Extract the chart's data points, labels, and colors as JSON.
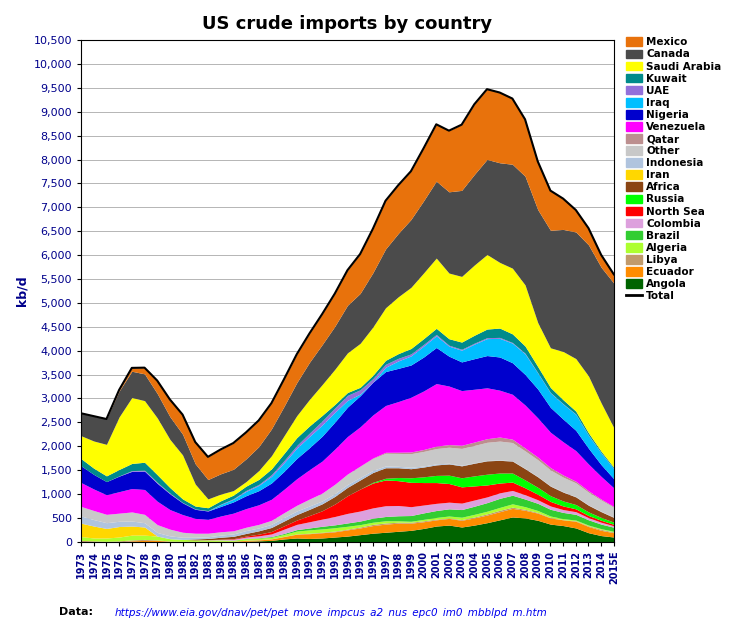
{
  "title": "US crude imports by country",
  "ylabel": "kb/d",
  "years": [
    1973,
    1974,
    1975,
    1976,
    1977,
    1978,
    1979,
    1980,
    1981,
    1982,
    1983,
    1984,
    1985,
    1986,
    1987,
    1988,
    1989,
    1990,
    1991,
    1992,
    1993,
    1994,
    1995,
    1996,
    1997,
    1998,
    1999,
    2000,
    2001,
    2002,
    2003,
    2004,
    2005,
    2006,
    2007,
    2008,
    2009,
    2010,
    2011,
    2012,
    2013,
    2014,
    "2015E"
  ],
  "ylim": [
    0,
    10500
  ],
  "yticks": [
    0,
    500,
    1000,
    1500,
    2000,
    2500,
    3000,
    3500,
    4000,
    4500,
    5000,
    5500,
    6000,
    6500,
    7000,
    7500,
    8000,
    8500,
    9000,
    9500,
    10000,
    10500
  ],
  "series": {
    "Angola": {
      "color": "#006400",
      "data": [
        0,
        0,
        0,
        0,
        0,
        0,
        0,
        0,
        0,
        0,
        0,
        0,
        0,
        10,
        20,
        30,
        60,
        80,
        70,
        80,
        100,
        120,
        150,
        180,
        200,
        220,
        240,
        280,
        330,
        350,
        310,
        350,
        400,
        460,
        520,
        500,
        450,
        370,
        340,
        290,
        190,
        130,
        100
      ]
    },
    "Ecuador": {
      "color": "#FF8C00",
      "data": [
        0,
        0,
        0,
        0,
        20,
        30,
        30,
        10,
        10,
        10,
        10,
        10,
        10,
        20,
        20,
        30,
        50,
        80,
        100,
        110,
        110,
        130,
        140,
        160,
        170,
        170,
        150,
        140,
        130,
        140,
        140,
        150,
        160,
        170,
        180,
        160,
        150,
        130,
        120,
        140,
        130,
        110,
        90
      ]
    },
    "Libya": {
      "color": "#C19A6B",
      "data": [
        30,
        20,
        10,
        20,
        20,
        20,
        10,
        5,
        0,
        0,
        0,
        0,
        0,
        5,
        5,
        5,
        5,
        5,
        10,
        10,
        15,
        15,
        20,
        25,
        25,
        20,
        20,
        20,
        15,
        10,
        15,
        20,
        25,
        30,
        25,
        20,
        15,
        10,
        5,
        10,
        15,
        20,
        15
      ]
    },
    "Algeria": {
      "color": "#ADFF2F",
      "data": [
        80,
        60,
        70,
        80,
        100,
        90,
        80,
        50,
        40,
        30,
        30,
        30,
        20,
        30,
        30,
        30,
        40,
        60,
        70,
        70,
        70,
        60,
        50,
        45,
        45,
        30,
        20,
        30,
        35,
        40,
        50,
        55,
        55,
        60,
        70,
        55,
        40,
        30,
        20,
        15,
        15,
        15,
        15
      ]
    },
    "Brazil": {
      "color": "#32CD32",
      "data": [
        0,
        0,
        0,
        0,
        0,
        0,
        0,
        0,
        0,
        0,
        0,
        0,
        5,
        5,
        10,
        15,
        20,
        30,
        40,
        55,
        60,
        70,
        75,
        85,
        90,
        105,
        120,
        135,
        145,
        150,
        160,
        170,
        180,
        190,
        180,
        160,
        150,
        140,
        130,
        120,
        110,
        95,
        85
      ]
    },
    "Colombia": {
      "color": "#DDA0DD",
      "data": [
        0,
        0,
        0,
        0,
        0,
        0,
        0,
        0,
        0,
        0,
        5,
        10,
        20,
        30,
        40,
        55,
        90,
        110,
        130,
        150,
        175,
        200,
        210,
        215,
        225,
        215,
        185,
        165,
        150,
        140,
        135,
        130,
        120,
        115,
        100,
        90,
        75,
        70,
        60,
        55,
        45,
        40,
        30
      ]
    },
    "North Sea": {
      "color": "#FF0000",
      "data": [
        0,
        0,
        0,
        0,
        0,
        0,
        0,
        0,
        0,
        0,
        0,
        5,
        10,
        20,
        35,
        50,
        70,
        90,
        130,
        175,
        260,
        370,
        460,
        520,
        540,
        520,
        510,
        470,
        435,
        390,
        340,
        295,
        250,
        205,
        175,
        145,
        115,
        95,
        75,
        60,
        45,
        40,
        30
      ]
    },
    "Russia": {
      "color": "#00FF00",
      "data": [
        0,
        0,
        0,
        0,
        0,
        0,
        0,
        0,
        0,
        0,
        0,
        0,
        0,
        0,
        0,
        0,
        0,
        0,
        0,
        0,
        0,
        0,
        0,
        15,
        35,
        65,
        95,
        120,
        150,
        175,
        190,
        210,
        225,
        210,
        190,
        165,
        145,
        120,
        105,
        90,
        75,
        60,
        45
      ]
    },
    "Africa": {
      "color": "#8B4513",
      "data": [
        0,
        0,
        0,
        0,
        0,
        0,
        0,
        0,
        0,
        20,
        25,
        40,
        50,
        55,
        70,
        85,
        100,
        115,
        130,
        145,
        160,
        175,
        190,
        205,
        220,
        205,
        190,
        205,
        220,
        235,
        250,
        265,
        280,
        265,
        250,
        235,
        220,
        200,
        185,
        160,
        140,
        120,
        100
      ]
    },
    "Iran": {
      "color": "#FFD700",
      "data": [
        280,
        250,
        200,
        220,
        190,
        170,
        0,
        0,
        0,
        0,
        0,
        0,
        0,
        0,
        0,
        0,
        0,
        0,
        0,
        0,
        0,
        0,
        0,
        0,
        0,
        0,
        0,
        0,
        0,
        0,
        0,
        0,
        0,
        0,
        0,
        0,
        0,
        0,
        0,
        0,
        0,
        0,
        0
      ]
    },
    "Indonesia": {
      "color": "#B0C4DE",
      "data": [
        150,
        135,
        120,
        110,
        105,
        90,
        75,
        60,
        45,
        35,
        35,
        45,
        50,
        60,
        60,
        65,
        75,
        75,
        70,
        60,
        60,
        60,
        52,
        45,
        38,
        30,
        30,
        22,
        22,
        15,
        15,
        8,
        8,
        8,
        8,
        8,
        8,
        8,
        8,
        8,
        8,
        8,
        8
      ]
    },
    "Other": {
      "color": "#C8C8C8",
      "data": [
        200,
        190,
        175,
        170,
        190,
        175,
        165,
        140,
        105,
        85,
        75,
        70,
        65,
        70,
        75,
        85,
        100,
        120,
        145,
        165,
        195,
        220,
        235,
        250,
        265,
        270,
        285,
        305,
        320,
        335,
        350,
        365,
        380,
        395,
        380,
        365,
        350,
        330,
        305,
        285,
        265,
        235,
        205
      ]
    },
    "Qatar": {
      "color": "#BC8F8F",
      "data": [
        0,
        0,
        0,
        0,
        0,
        0,
        0,
        0,
        0,
        0,
        0,
        0,
        0,
        0,
        0,
        0,
        0,
        0,
        0,
        0,
        0,
        0,
        5,
        10,
        20,
        25,
        35,
        40,
        50,
        55,
        65,
        70,
        75,
        85,
        70,
        60,
        55,
        50,
        45,
        35,
        30,
        20,
        15
      ]
    },
    "Venezuela": {
      "color": "#FF00FF",
      "data": [
        500,
        450,
        410,
        450,
        490,
        520,
        490,
        410,
        370,
        310,
        290,
        330,
        370,
        390,
        410,
        440,
        490,
        555,
        615,
        670,
        735,
        785,
        820,
        900,
        980,
        1060,
        1145,
        1225,
        1310,
        1225,
        1145,
        1105,
        1065,
        980,
        940,
        900,
        820,
        740,
        695,
        640,
        560,
        475,
        390
      ]
    },
    "Nigeria": {
      "color": "#0000CD",
      "data": [
        350,
        305,
        275,
        325,
        360,
        385,
        375,
        330,
        245,
        190,
        175,
        200,
        235,
        270,
        295,
        340,
        375,
        425,
        460,
        520,
        565,
        615,
        650,
        685,
        710,
        695,
        675,
        710,
        755,
        625,
        600,
        640,
        675,
        695,
        660,
        640,
        605,
        520,
        475,
        425,
        330,
        245,
        190
      ]
    },
    "Iraq": {
      "color": "#00BFFF",
      "data": [
        0,
        0,
        0,
        0,
        0,
        0,
        0,
        0,
        0,
        0,
        0,
        40,
        55,
        90,
        110,
        140,
        180,
        215,
        235,
        235,
        205,
        140,
        35,
        0,
        90,
        155,
        190,
        230,
        245,
        210,
        245,
        305,
        355,
        390,
        410,
        430,
        335,
        305,
        315,
        335,
        270,
        245,
        210
      ]
    },
    "UAE": {
      "color": "#9370DB",
      "data": [
        0,
        0,
        0,
        5,
        15,
        20,
        20,
        15,
        8,
        8,
        8,
        8,
        12,
        20,
        20,
        35,
        45,
        55,
        70,
        85,
        90,
        105,
        90,
        75,
        62,
        55,
        42,
        35,
        28,
        20,
        20,
        20,
        20,
        20,
        14,
        14,
        7,
        7,
        7,
        7,
        7,
        7,
        7
      ]
    },
    "Kuwait": {
      "color": "#008B8B",
      "data": [
        150,
        130,
        120,
        135,
        150,
        165,
        160,
        115,
        75,
        60,
        60,
        70,
        75,
        90,
        105,
        120,
        150,
        165,
        150,
        115,
        75,
        60,
        52,
        70,
        83,
        98,
        113,
        120,
        128,
        135,
        150,
        165,
        180,
        195,
        180,
        150,
        128,
        105,
        83,
        60,
        45,
        30,
        22
      ]
    },
    "Saudi Arabia": {
      "color": "#FFFF00",
      "data": [
        480,
        570,
        660,
        1100,
        1380,
        1290,
        1190,
        1010,
        920,
        460,
        185,
        140,
        95,
        95,
        185,
        275,
        370,
        460,
        555,
        645,
        735,
        830,
        920,
        1010,
        1100,
        1190,
        1280,
        1375,
        1470,
        1375,
        1375,
        1470,
        1560,
        1375,
        1375,
        1280,
        920,
        830,
        1010,
        1100,
        1190,
        1010,
        830
      ]
    },
    "Canada": {
      "color": "#4B4B4B",
      "data": [
        470,
        520,
        530,
        540,
        550,
        560,
        510,
        475,
        435,
        425,
        405,
        425,
        445,
        475,
        500,
        560,
        615,
        690,
        775,
        835,
        900,
        995,
        1045,
        1135,
        1230,
        1325,
        1420,
        1510,
        1610,
        1700,
        1800,
        1895,
        1990,
        2085,
        2175,
        2275,
        2365,
        2460,
        2555,
        2650,
        2745,
        2840,
        3025
      ]
    },
    "Mexico": {
      "color": "#E8720C",
      "data": [
        0,
        0,
        0,
        25,
        70,
        130,
        270,
        360,
        410,
        455,
        475,
        510,
        550,
        555,
        550,
        540,
        570,
        595,
        605,
        640,
        685,
        735,
        825,
        920,
        1010,
        1010,
        1010,
        1100,
        1190,
        1280,
        1375,
        1470,
        1470,
        1470,
        1375,
        1190,
        1010,
        830,
        645,
        460,
        350,
        260,
        185
      ]
    }
  },
  "data_url": "https://www.eia.gov/dnav/pet/pet_move_impcus_a2_nus_epc0_im0_mbblpd_m.htm",
  "bg_color": "#FFFFFF",
  "stack_order": [
    "Angola",
    "Ecuador",
    "Libya",
    "Algeria",
    "Brazil",
    "Colombia",
    "North Sea",
    "Russia",
    "Africa",
    "Iran",
    "Indonesia",
    "Other",
    "Qatar",
    "Venezuela",
    "Nigeria",
    "Iraq",
    "UAE",
    "Kuwait",
    "Saudi Arabia",
    "Canada",
    "Mexico"
  ],
  "legend_order": [
    "Mexico",
    "Canada",
    "Saudi Arabia",
    "Kuwait",
    "UAE",
    "Iraq",
    "Nigeria",
    "Venezuela",
    "Qatar",
    "Other",
    "Indonesia",
    "Iran",
    "Africa",
    "Russia",
    "North Sea",
    "Colombia",
    "Brazil",
    "Algeria",
    "Libya",
    "Ecuador",
    "Angola"
  ]
}
